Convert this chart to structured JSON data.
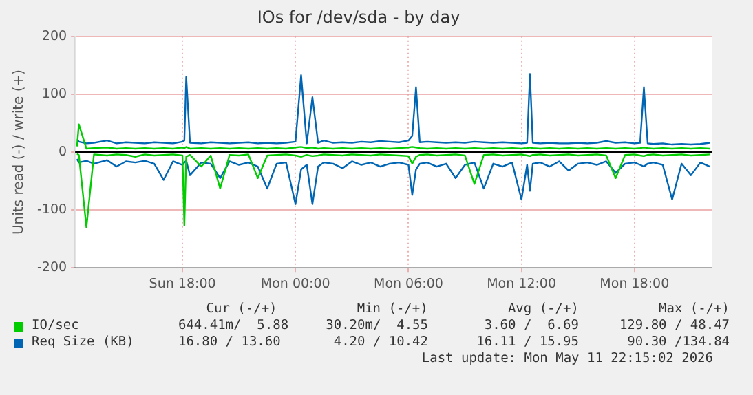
{
  "chart_data": {
    "type": "line",
    "title": "IOs for /dev/sda - by day",
    "ylabel": "Units read (-) / write (+)",
    "x": [
      "2026-05-10T12:24",
      "2026-05-10T12:30",
      "2026-05-10T12:54",
      "2026-05-10T13:18",
      "2026-05-10T14:00",
      "2026-05-10T14:30",
      "2026-05-10T15:00",
      "2026-05-10T15:30",
      "2026-05-10T16:00",
      "2026-05-10T16:30",
      "2026-05-10T17:00",
      "2026-05-10T17:30",
      "2026-05-10T18:00",
      "2026-05-10T18:06",
      "2026-05-10T18:12",
      "2026-05-10T18:24",
      "2026-05-10T19:00",
      "2026-05-10T19:30",
      "2026-05-10T20:00",
      "2026-05-10T20:30",
      "2026-05-10T21:00",
      "2026-05-10T21:30",
      "2026-05-10T22:00",
      "2026-05-10T22:30",
      "2026-05-10T23:00",
      "2026-05-10T23:30",
      "2026-05-11T00:00",
      "2026-05-11T00:18",
      "2026-05-11T00:36",
      "2026-05-11T00:54",
      "2026-05-11T01:12",
      "2026-05-11T01:30",
      "2026-05-11T02:00",
      "2026-05-11T02:30",
      "2026-05-11T03:00",
      "2026-05-11T03:30",
      "2026-05-11T04:00",
      "2026-05-11T04:30",
      "2026-05-11T05:00",
      "2026-05-11T05:30",
      "2026-05-11T06:00",
      "2026-05-11T06:12",
      "2026-05-11T06:24",
      "2026-05-11T06:36",
      "2026-05-11T07:00",
      "2026-05-11T07:30",
      "2026-05-11T08:00",
      "2026-05-11T08:30",
      "2026-05-11T09:00",
      "2026-05-11T09:30",
      "2026-05-11T10:00",
      "2026-05-11T10:30",
      "2026-05-11T11:00",
      "2026-05-11T11:30",
      "2026-05-11T12:00",
      "2026-05-11T12:18",
      "2026-05-11T12:27",
      "2026-05-11T12:36",
      "2026-05-11T13:00",
      "2026-05-11T13:30",
      "2026-05-11T14:00",
      "2026-05-11T14:30",
      "2026-05-11T15:00",
      "2026-05-11T15:30",
      "2026-05-11T16:00",
      "2026-05-11T16:30",
      "2026-05-11T17:00",
      "2026-05-11T17:30",
      "2026-05-11T18:00",
      "2026-05-11T18:18",
      "2026-05-11T18:30",
      "2026-05-11T18:42",
      "2026-05-11T19:00",
      "2026-05-11T19:30",
      "2026-05-11T20:00",
      "2026-05-11T20:30",
      "2026-05-11T21:00",
      "2026-05-11T21:30",
      "2026-05-11T22:00"
    ],
    "xlim": [
      "2026-05-10T12:18",
      "2026-05-11T22:06"
    ],
    "xticks": [
      {
        "value": "2026-05-10T18:00",
        "label": "Sun 18:00"
      },
      {
        "value": "2026-05-11T00:00",
        "label": "Mon 00:00"
      },
      {
        "value": "2026-05-11T06:00",
        "label": "Mon 06:00"
      },
      {
        "value": "2026-05-11T12:00",
        "label": "Mon 12:00"
      },
      {
        "value": "2026-05-11T18:00",
        "label": "Mon 18:00"
      }
    ],
    "ylim": [
      -200,
      200
    ],
    "yticks": [
      -200,
      -100,
      0,
      100,
      200
    ],
    "grid": true,
    "legend": "bottom",
    "marker": "none",
    "line_style": "solid",
    "series": [
      {
        "name": "IO/sec",
        "color": "#00cc00",
        "values": [
          10,
          48,
          6,
          7,
          8,
          6,
          7,
          6,
          7,
          6,
          7,
          6,
          8,
          7,
          9,
          6,
          7,
          6,
          7,
          6,
          7,
          6,
          7,
          6,
          7,
          6,
          8,
          9,
          7,
          8,
          6,
          7,
          6,
          7,
          6,
          7,
          6,
          7,
          6,
          7,
          8,
          9,
          8,
          7,
          6,
          7,
          6,
          7,
          6,
          7,
          6,
          7,
          6,
          7,
          6,
          7,
          8,
          7,
          6,
          7,
          6,
          7,
          6,
          7,
          6,
          7,
          6,
          7,
          6,
          7,
          8,
          7,
          6,
          7,
          6,
          7,
          6,
          7,
          6
        ]
      },
      {
        "color": "#00cc00",
        "values": [
          -3,
          -5,
          -130,
          -4,
          -6,
          -4,
          -5,
          -8,
          -4,
          -6,
          -5,
          -4,
          -6,
          -127,
          -8,
          -5,
          -25,
          -6,
          -63,
          -5,
          -6,
          -4,
          -45,
          -6,
          -5,
          -4,
          -6,
          -8,
          -5,
          -7,
          -6,
          -4,
          -5,
          -6,
          -4,
          -5,
          -6,
          -4,
          -5,
          -6,
          -7,
          -20,
          -8,
          -5,
          -4,
          -6,
          -5,
          -4,
          -6,
          -55,
          -5,
          -4,
          -6,
          -5,
          -4,
          -6,
          -7,
          -5,
          -4,
          -6,
          -5,
          -4,
          -6,
          -5,
          -4,
          -6,
          -45,
          -5,
          -4,
          -6,
          -7,
          -5,
          -4,
          -6,
          -5,
          -4,
          -6,
          -5,
          -4
        ]
      },
      {
        "name": "Req Size (KB)",
        "color": "#0066b3",
        "values": [
          22,
          18,
          15,
          16,
          20,
          15,
          17,
          16,
          15,
          17,
          16,
          15,
          18,
          20,
          130,
          16,
          15,
          17,
          16,
          15,
          16,
          17,
          15,
          16,
          15,
          16,
          18,
          133,
          15,
          95,
          16,
          20,
          16,
          17,
          16,
          18,
          17,
          19,
          18,
          17,
          20,
          28,
          112,
          17,
          18,
          17,
          16,
          17,
          16,
          18,
          17,
          16,
          17,
          16,
          15,
          16,
          135,
          16,
          15,
          16,
          15,
          15,
          16,
          15,
          16,
          19,
          16,
          17,
          15,
          16,
          112,
          15,
          14,
          15,
          13,
          14,
          13,
          14,
          16
        ]
      },
      {
        "color": "#0066b3",
        "values": [
          -12,
          -18,
          -15,
          -20,
          -14,
          -25,
          -16,
          -18,
          -15,
          -20,
          -48,
          -16,
          -22,
          -18,
          -15,
          -40,
          -18,
          -20,
          -45,
          -16,
          -22,
          -18,
          -25,
          -63,
          -20,
          -18,
          -90,
          -30,
          -22,
          -90,
          -25,
          -18,
          -20,
          -28,
          -16,
          -22,
          -18,
          -25,
          -20,
          -18,
          -22,
          -74,
          -30,
          -20,
          -18,
          -25,
          -20,
          -45,
          -22,
          -18,
          -63,
          -20,
          -25,
          -18,
          -82,
          -22,
          -67,
          -20,
          -18,
          -25,
          -16,
          -32,
          -20,
          -18,
          -22,
          -16,
          -36,
          -20,
          -18,
          -22,
          -25,
          -20,
          -18,
          -22,
          -82,
          -20,
          -40,
          -18,
          -25
        ]
      }
    ],
    "ref_lines": [
      {
        "axis": "y",
        "value": 0,
        "color": "#000000"
      }
    ],
    "annotations": [
      "Cur (-/+)",
      "Min (-/+)",
      "Avg (-/+)",
      "Max (-/+)",
      "644.41m/  5.88",
      "30.20m/  4.55",
      "3.60 /  6.69",
      "129.80 / 48.47",
      "16.80 / 13.60",
      "4.20 / 10.42",
      "16.11 / 15.95",
      "90.30 /134.84",
      "Last update: Mon May 11 22:15:02 2026"
    ]
  }
}
